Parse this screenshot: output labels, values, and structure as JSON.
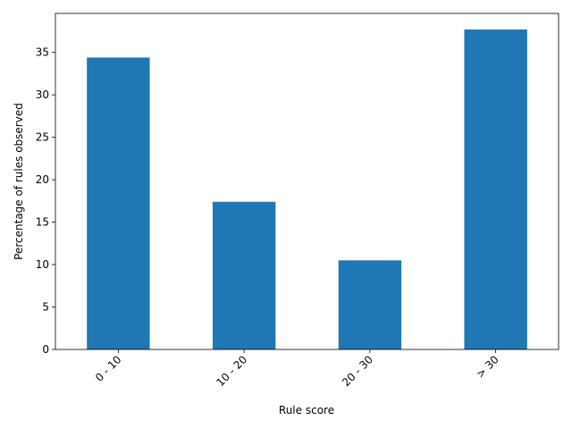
{
  "chart_data": {
    "type": "bar",
    "xlabel": "Rule score",
    "ylabel": "Percentage of rules observed",
    "categories": [
      "0 - 10",
      "10 - 20",
      "20 - 30",
      "> 30"
    ],
    "values": [
      34.4,
      17.4,
      10.5,
      37.7
    ],
    "color": "#1f77b4",
    "ylim": [
      0,
      39.6
    ],
    "yticks": [
      0,
      5,
      10,
      15,
      20,
      25,
      30,
      35
    ],
    "grid": false
  }
}
